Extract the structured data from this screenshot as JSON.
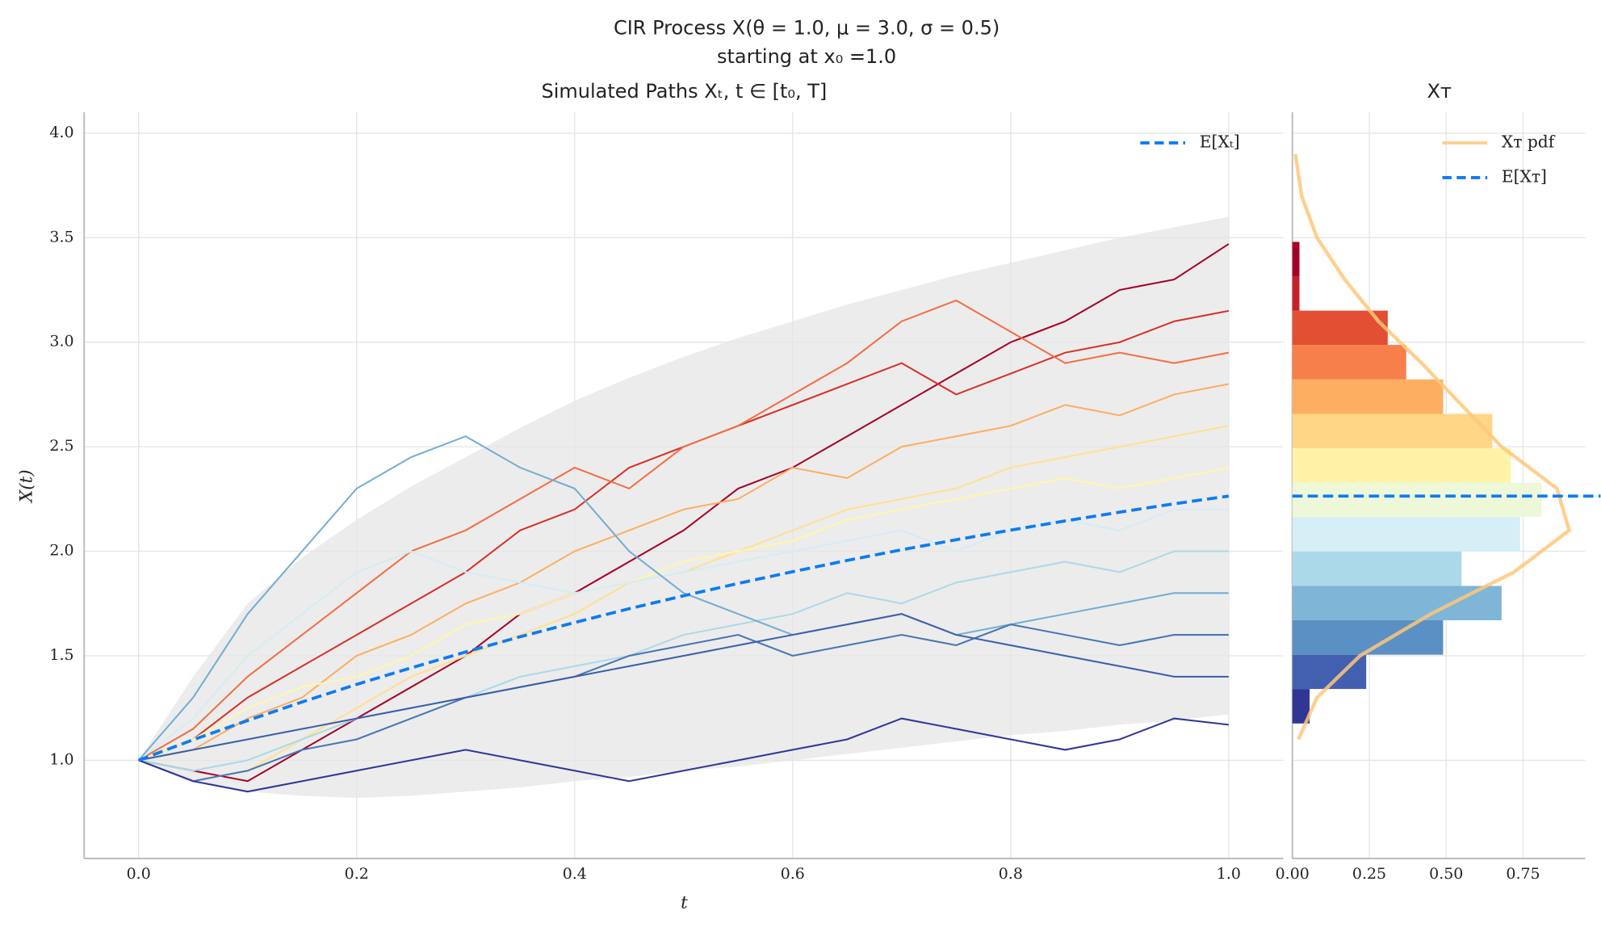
{
  "title": "CIR Process X(θ = 1.0, μ = 3.0, σ = 0.5)",
  "subtitle": "starting at x₀ =1.0",
  "chart_data": [
    {
      "type": "line",
      "title": "Simulated Paths Xₜ, t ∈ [t₀, T]",
      "x_label": "t",
      "y_label": "X(t)",
      "legend": "upper right",
      "grid": true,
      "xlim": [
        -0.05,
        1.05
      ],
      "xticks": [
        {
          "value": 0,
          "label": "0.0"
        },
        0.2,
        0.4,
        0.6,
        0.8,
        {
          "value": 1,
          "label": "1.0"
        }
      ],
      "ylim": [
        0.53,
        4.1
      ],
      "yticks": [
        {
          "value": 1,
          "label": "1.0"
        },
        1.5,
        {
          "value": 2,
          "label": "2.0"
        },
        2.5,
        {
          "value": 3,
          "label": "3.0"
        },
        3.5,
        {
          "value": 4,
          "label": "4.0"
        }
      ],
      "x": [
        0,
        0.05,
        0.1,
        0.15,
        0.2,
        0.25,
        0.3,
        0.35,
        0.4,
        0.45,
        0.5,
        0.55,
        0.6,
        0.65,
        0.7,
        0.75,
        0.8,
        0.85,
        0.9,
        0.95,
        1.0
      ],
      "band": {
        "color": "#e6e6e6",
        "upper": [
          1.0,
          1.4,
          1.75,
          1.97,
          2.15,
          2.31,
          2.45,
          2.59,
          2.72,
          2.83,
          2.93,
          3.02,
          3.1,
          3.18,
          3.25,
          3.32,
          3.38,
          3.44,
          3.5,
          3.55,
          3.6
        ],
        "lower": [
          1.0,
          0.9,
          0.85,
          0.83,
          0.82,
          0.83,
          0.85,
          0.87,
          0.9,
          0.92,
          0.95,
          0.97,
          1.0,
          1.03,
          1.06,
          1.09,
          1.12,
          1.14,
          1.17,
          1.19,
          1.22
        ]
      },
      "series": [
        {
          "color": "#a50026",
          "values": [
            1.0,
            0.95,
            0.9,
            1.05,
            1.2,
            1.35,
            1.5,
            1.7,
            1.8,
            1.95,
            2.1,
            2.3,
            2.4,
            2.55,
            2.7,
            2.85,
            3.0,
            3.1,
            3.25,
            3.3,
            3.47
          ]
        },
        {
          "color": "#d73027",
          "values": [
            1.0,
            1.1,
            1.3,
            1.45,
            1.6,
            1.75,
            1.9,
            2.1,
            2.2,
            2.4,
            2.5,
            2.6,
            2.7,
            2.8,
            2.9,
            2.75,
            2.85,
            2.95,
            3.0,
            3.1,
            3.15
          ]
        },
        {
          "color": "#f46d43",
          "values": [
            1.0,
            1.15,
            1.4,
            1.6,
            1.8,
            2.0,
            2.1,
            2.25,
            2.4,
            2.3,
            2.5,
            2.6,
            2.75,
            2.9,
            3.1,
            3.2,
            3.05,
            2.9,
            2.95,
            2.9,
            2.95
          ]
        },
        {
          "color": "#fdae61",
          "values": [
            1.0,
            1.05,
            1.2,
            1.3,
            1.5,
            1.6,
            1.75,
            1.85,
            2.0,
            2.1,
            2.2,
            2.25,
            2.4,
            2.35,
            2.5,
            2.55,
            2.6,
            2.7,
            2.65,
            2.75,
            2.8
          ]
        },
        {
          "color": "#fee090",
          "values": [
            1.0,
            0.9,
            0.95,
            1.1,
            1.25,
            1.4,
            1.5,
            1.6,
            1.7,
            1.85,
            1.9,
            2.0,
            2.1,
            2.2,
            2.25,
            2.3,
            2.4,
            2.45,
            2.5,
            2.55,
            2.6
          ]
        },
        {
          "color": "#fff7a8",
          "values": [
            1.0,
            1.1,
            1.25,
            1.35,
            1.4,
            1.5,
            1.65,
            1.7,
            1.8,
            1.85,
            1.95,
            2.0,
            2.05,
            2.15,
            2.2,
            2.25,
            2.3,
            2.35,
            2.3,
            2.35,
            2.4
          ]
        },
        {
          "color": "#d4ecf4",
          "values": [
            1.0,
            1.2,
            1.5,
            1.7,
            1.9,
            2.0,
            1.9,
            1.85,
            1.8,
            1.85,
            1.9,
            1.95,
            2.0,
            2.05,
            2.1,
            2.0,
            2.1,
            2.15,
            2.1,
            2.2,
            2.2
          ]
        },
        {
          "color": "#abd9e9",
          "values": [
            1.0,
            0.95,
            1.0,
            1.1,
            1.2,
            1.25,
            1.3,
            1.4,
            1.45,
            1.5,
            1.6,
            1.65,
            1.7,
            1.8,
            1.75,
            1.85,
            1.9,
            1.95,
            1.9,
            2.0,
            2.0
          ]
        },
        {
          "color": "#74add1",
          "values": [
            1.0,
            1.3,
            1.7,
            2.0,
            2.3,
            2.45,
            2.55,
            2.4,
            2.3,
            2.0,
            1.8,
            1.7,
            1.6,
            1.65,
            1.7,
            1.6,
            1.65,
            1.7,
            1.75,
            1.8,
            1.8
          ]
        },
        {
          "color": "#4575b4",
          "values": [
            1.0,
            0.9,
            0.95,
            1.05,
            1.1,
            1.2,
            1.3,
            1.35,
            1.4,
            1.5,
            1.55,
            1.6,
            1.5,
            1.55,
            1.6,
            1.55,
            1.65,
            1.6,
            1.55,
            1.6,
            1.6
          ]
        },
        {
          "color": "#3a5fa8",
          "values": [
            1.0,
            1.05,
            1.1,
            1.15,
            1.2,
            1.25,
            1.3,
            1.35,
            1.4,
            1.45,
            1.5,
            1.55,
            1.6,
            1.65,
            1.7,
            1.6,
            1.55,
            1.5,
            1.45,
            1.4,
            1.4
          ]
        },
        {
          "color": "#313695",
          "values": [
            1.0,
            0.9,
            0.85,
            0.9,
            0.95,
            1.0,
            1.05,
            1.0,
            0.95,
            0.9,
            0.95,
            1.0,
            1.05,
            1.1,
            1.2,
            1.15,
            1.1,
            1.05,
            1.1,
            1.2,
            1.17
          ]
        },
        {
          "name": "E[Xₜ]",
          "color": "#0f7bf0",
          "dashed": true,
          "values": [
            1.0,
            1.098,
            1.19,
            1.279,
            1.363,
            1.442,
            1.518,
            1.591,
            1.659,
            1.725,
            1.787,
            1.846,
            1.902,
            1.956,
            2.007,
            2.055,
            2.101,
            2.145,
            2.187,
            2.227,
            2.264
          ]
        }
      ]
    },
    {
      "type": "histogram",
      "orientation": "horizontal",
      "title": "Xᴛ",
      "legend": "upper right",
      "grid": true,
      "xlim": [
        0,
        0.952
      ],
      "xticks": [
        {
          "value": 0,
          "label": "0.00"
        },
        0.25,
        {
          "value": 0.5,
          "label": "0.50"
        },
        0.75
      ],
      "ylim": [
        0.53,
        4.1
      ],
      "yticks": [
        1,
        1.5,
        2,
        2.5,
        3,
        3.5,
        4
      ],
      "bins": [
        1.176,
        1.341,
        1.505,
        1.67,
        1.834,
        1.999,
        2.164,
        2.328,
        2.493,
        2.657,
        2.822,
        2.987,
        3.151,
        3.316,
        3.48
      ],
      "values": [
        0.056,
        0.24,
        0.49,
        0.68,
        0.55,
        0.74,
        0.81,
        0.71,
        0.65,
        0.49,
        0.37,
        0.31,
        0.023,
        0.023
      ],
      "colors": [
        "#313695",
        "#4360b0",
        "#5b90c4",
        "#7fb5d6",
        "#abd9e9",
        "#d6eef5",
        "#eef8d8",
        "#fff4a8",
        "#fed685",
        "#fdae61",
        "#f67f4b",
        "#e34f33",
        "#c7202a",
        "#a50026"
      ],
      "pdf": {
        "name": "Xᴛ pdf",
        "color": "#ffc77a",
        "y": [
          1.1,
          1.3,
          1.5,
          1.7,
          1.9,
          2.1,
          2.3,
          2.5,
          2.7,
          2.9,
          3.1,
          3.3,
          3.5,
          3.7,
          3.9
        ],
        "values": [
          0.02,
          0.08,
          0.22,
          0.45,
          0.72,
          0.9,
          0.86,
          0.68,
          0.55,
          0.42,
          0.28,
          0.17,
          0.08,
          0.03,
          0.01
        ]
      },
      "mean": {
        "name": "E[Xᴛ]",
        "color": "#0f7bf0",
        "value": 2.264
      }
    }
  ]
}
